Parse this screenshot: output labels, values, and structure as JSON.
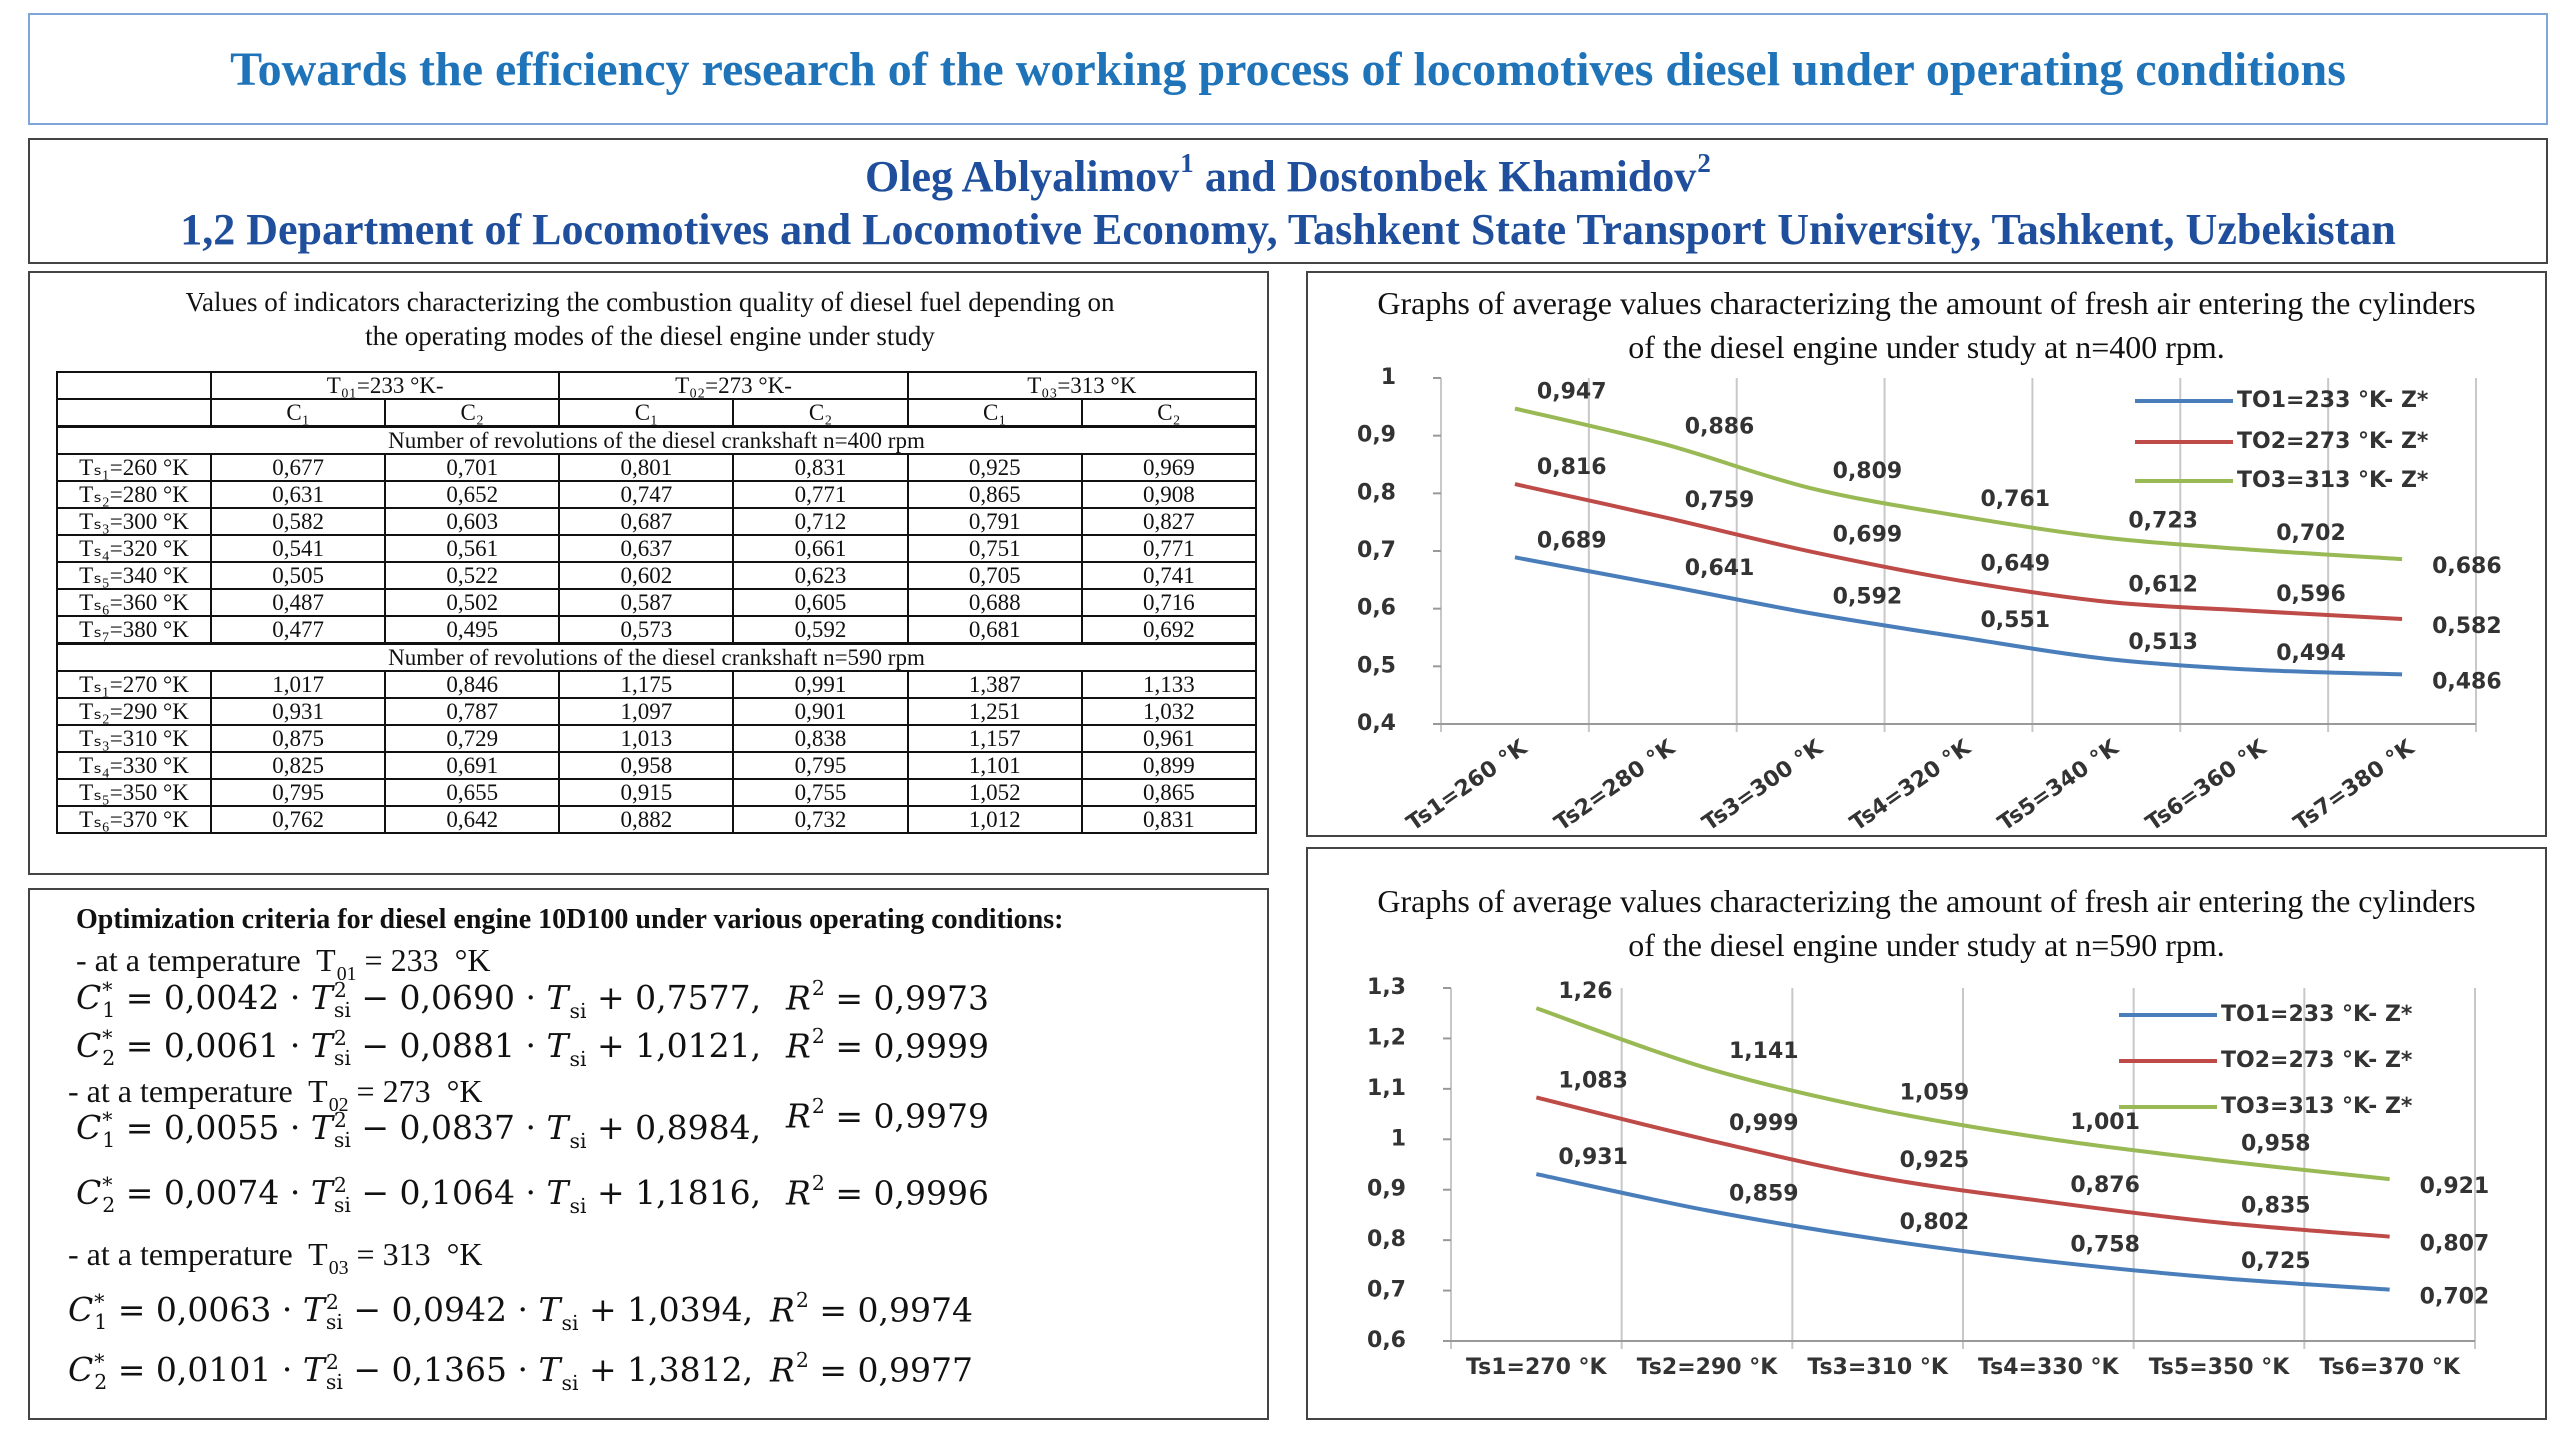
{
  "header": {
    "title": "Towards the efficiency research of the working process of locomotives diesel under operating conditions"
  },
  "authors": {
    "names": [
      "Oleg Ablyalimov",
      {
        "sup": "1"
      },
      " and Dostonbek Khamidov",
      {
        "sup": "2"
      }
    ],
    "affiliation": "1,2 Department of Locomotives and Locomotive Economy, Tashkent State Transport University, Tashkent, Uzbekistan"
  },
  "table": {
    "caption": "Values of indicators characterizing the combustion quality of diesel fuel depending on the operating modes of the diesel engine under study",
    "groups": [
      "T₀₁=233 °K-",
      "T₀₂=273 °K-",
      "T₀₃=313 °K"
    ],
    "subheads": [
      "C₁",
      "C₂",
      "C₁",
      "C₂",
      "C₁",
      "C₂"
    ],
    "sections": [
      {
        "title": "Number of revolutions of the diesel crankshaft n=400 rpm",
        "rows": [
          [
            "Tₛ₁=260 °K",
            "0,677",
            "0,701",
            "0,801",
            "0,831",
            "0,925",
            "0,969"
          ],
          [
            "Tₛ₂=280 °K",
            "0,631",
            "0,652",
            "0,747",
            "0,771",
            "0,865",
            "0,908"
          ],
          [
            "Tₛ₃=300 °K",
            "0,582",
            "0,603",
            "0,687",
            "0,712",
            "0,791",
            "0,827"
          ],
          [
            "Tₛ₄=320 °K",
            "0,541",
            "0,561",
            "0,637",
            "0,661",
            "0,751",
            "0,771"
          ],
          [
            "Tₛ₅=340 °K",
            "0,505",
            "0,522",
            "0,602",
            "0,623",
            "0,705",
            "0,741"
          ],
          [
            "Tₛ₆=360 °K",
            "0,487",
            "0,502",
            "0,587",
            "0,605",
            "0,688",
            "0,716"
          ],
          [
            "Tₛ₇=380 °K",
            "0,477",
            "0,495",
            "0,573",
            "0,592",
            "0,681",
            "0,692"
          ]
        ]
      },
      {
        "title": "Number of revolutions of the diesel crankshaft n=590 rpm",
        "rows": [
          [
            "Tₛ₁=270 °K",
            "1,017",
            "0,846",
            "1,175",
            "0,991",
            "1,387",
            "1,133"
          ],
          [
            "Tₛ₂=290 °K",
            "0,931",
            "0,787",
            "1,097",
            "0,901",
            "1,251",
            "1,032"
          ],
          [
            "Tₛ₃=310 °K",
            "0,875",
            "0,729",
            "1,013",
            "0,838",
            "1,157",
            "0,961"
          ],
          [
            "Tₛ₄=330 °K",
            "0,825",
            "0,691",
            "0,958",
            "0,795",
            "1,101",
            "0,899"
          ],
          [
            "Tₛ₅=350 °K",
            "0,795",
            "0,655",
            "0,915",
            "0,755",
            "1,052",
            "0,865"
          ],
          [
            "Tₛ₆=370 °K",
            "0,762",
            "0,642",
            "0,882",
            "0,732",
            "1,012",
            "0,831"
          ]
        ]
      }
    ]
  },
  "optimization": {
    "title": "Optimization criteria for diesel engine 10D100 under various operating conditions:",
    "groups": [
      {
        "label": [
          "- at a temperature  T",
          {
            "sub": "01"
          },
          " = 233  °K"
        ],
        "equations": [
          {
            "lhs": [
              {
                "base": "C",
                "sub": "1",
                "sup": "*"
              },
              " = 0,0042 · ",
              {
                "base": "T",
                "sub": "si",
                "sup": "2"
              },
              " − 0,0690 · ",
              {
                "base": "T",
                "sub": "si"
              },
              " + 0,7577,"
            ],
            "r2": [
              {
                "base": "R",
                "sup": "2"
              },
              " = 0,9973"
            ]
          },
          {
            "lhs": [
              {
                "base": "C",
                "sub": "2",
                "sup": "*"
              },
              " = 0,0061 · ",
              {
                "base": "T",
                "sub": "si",
                "sup": "2"
              },
              " − 0,0881 · ",
              {
                "base": "T",
                "sub": "si"
              },
              " + 1,0121,"
            ],
            "r2": [
              {
                "base": "R",
                "sup": "2"
              },
              " = 0,9999"
            ]
          }
        ]
      },
      {
        "label": [
          "- at a temperature  T",
          {
            "sub": "02"
          },
          " = 273  °K"
        ],
        "equations": [
          {
            "lhs": [
              {
                "base": "C",
                "sub": "1",
                "sup": "*"
              },
              " = 0,0055 · ",
              {
                "base": "T",
                "sub": "si",
                "sup": "2"
              },
              " − 0,0837 · ",
              {
                "base": "T",
                "sub": "si"
              },
              " + 0,8984,"
            ],
            "r2": [
              {
                "base": "R",
                "sup": "2"
              },
              " = 0,9979"
            ]
          },
          {
            "lhs": [
              {
                "base": "C",
                "sub": "2",
                "sup": "*"
              },
              " = 0,0074 · ",
              {
                "base": "T",
                "sub": "si",
                "sup": "2"
              },
              " − 0,1064 · ",
              {
                "base": "T",
                "sub": "si"
              },
              " + 1,1816,"
            ],
            "r2": [
              {
                "base": "R",
                "sup": "2"
              },
              " = 0,9996"
            ]
          }
        ]
      },
      {
        "label": [
          "- at a temperature  T",
          {
            "sub": "03"
          },
          " = 313  °K"
        ],
        "equations": [
          {
            "lhs": [
              {
                "base": "C",
                "sub": "1",
                "sup": "*"
              },
              " = 0,0063 · ",
              {
                "base": "T",
                "sub": "si",
                "sup": "2"
              },
              " − 0,0942 · ",
              {
                "base": "T",
                "sub": "si"
              },
              " + 1,0394,"
            ],
            "r2": [
              {
                "base": "R",
                "sup": "2"
              },
              " = 0,9974"
            ]
          },
          {
            "lhs": [
              {
                "base": "C",
                "sub": "2",
                "sup": "*"
              },
              " = 0,0101 · ",
              {
                "base": "T",
                "sub": "si",
                "sup": "2"
              },
              " − 0,1365 · ",
              {
                "base": "T",
                "sub": "si"
              },
              " + 1,3812,"
            ],
            "r2": [
              {
                "base": "R",
                "sup": "2"
              },
              " = 0,9977"
            ]
          }
        ]
      }
    ]
  },
  "chart_data": [
    {
      "type": "line",
      "title": "Graphs of average values characterizing the amount of fresh air entering the cylinders of the diesel engine under study at n=400 rpm.",
      "categories": [
        "Ts1=260 °K",
        "Ts2=280 °K",
        "Ts3=300 °K",
        "Ts4=320 °K",
        "Ts5=340 °K",
        "Ts6=360 °K",
        "Ts7=380 °K"
      ],
      "ylim": [
        0.4,
        1
      ],
      "yticks": [
        {
          "value": 0.4,
          "label": "0,4"
        },
        {
          "value": 0.5,
          "label": "0,5"
        },
        {
          "value": 0.6,
          "label": "0,6"
        },
        {
          "value": 0.7,
          "label": "0,7"
        },
        {
          "value": 0.8,
          "label": "0,8"
        },
        {
          "value": 0.9,
          "label": "0,9"
        },
        1
      ],
      "legend": "upper right",
      "series": [
        {
          "name": "TO1=233 °K- Z*",
          "color": "#4a7ebb",
          "values": [
            0.689,
            0.641,
            0.592,
            0.551,
            0.513,
            0.494,
            0.486
          ],
          "value_labels": [
            "0,689",
            "0,641",
            "0,592",
            "0,551",
            "0,513",
            "0,494",
            "0,486"
          ]
        },
        {
          "name": "TO2=273 °K- Z*",
          "color": "#be4b48",
          "values": [
            0.816,
            0.759,
            0.699,
            0.649,
            0.612,
            0.596,
            0.582
          ],
          "value_labels": [
            "0,816",
            "0,759",
            "0,699",
            "0,649",
            "0,612",
            "0,596",
            "0,582"
          ]
        },
        {
          "name": "TO3=313 °K- Z*",
          "color": "#98b954",
          "values": [
            0.947,
            0.886,
            0.809,
            0.761,
            0.723,
            0.702,
            0.686
          ],
          "value_labels": [
            "0,947",
            "0,886",
            "0,809",
            "0,761",
            "0,723",
            "0,702",
            "0,686"
          ]
        }
      ]
    },
    {
      "type": "line",
      "title": "Graphs of average values characterizing the amount of fresh air entering the cylinders of the diesel engine under study at n=590 rpm.",
      "categories": [
        "Ts1=270 °K",
        "Ts2=290 °K",
        "Ts3=310 °K",
        "Ts4=330 °K",
        "Ts5=350 °K",
        "Ts6=370 °K"
      ],
      "ylim": [
        0.6,
        1.3
      ],
      "yticks": [
        {
          "value": 0.6,
          "label": "0,6"
        },
        {
          "value": 0.7,
          "label": "0,7"
        },
        {
          "value": 0.8,
          "label": "0,8"
        },
        {
          "value": 0.9,
          "label": "0,9"
        },
        1,
        {
          "value": 1.1,
          "label": "1,1"
        },
        {
          "value": 1.2,
          "label": "1,2"
        },
        {
          "value": 1.3,
          "label": "1,3"
        }
      ],
      "legend": "upper right",
      "series": [
        {
          "name": "TO1=233 °K- Z*",
          "color": "#4a7ebb",
          "values": [
            0.931,
            0.859,
            0.802,
            0.758,
            0.725,
            0.702
          ],
          "value_labels": [
            "0,931",
            "0,859",
            "0,802",
            "0,758",
            "0,725",
            "0,702"
          ]
        },
        {
          "name": "TO2=273 °K- Z*",
          "color": "#be4b48",
          "values": [
            1.083,
            0.999,
            0.925,
            0.876,
            0.835,
            0.807
          ],
          "value_labels": [
            "1,083",
            "0,999",
            "0,925",
            "0,876",
            "0,835",
            "0,807"
          ]
        },
        {
          "name": "TO3=313 °K- Z*",
          "color": "#98b954",
          "values": [
            1.26,
            1.141,
            1.059,
            1.001,
            0.958,
            0.921
          ],
          "value_labels": [
            "1,26",
            "1,141",
            "1,059",
            "1,001",
            "0,958",
            "0,921"
          ]
        }
      ]
    }
  ]
}
